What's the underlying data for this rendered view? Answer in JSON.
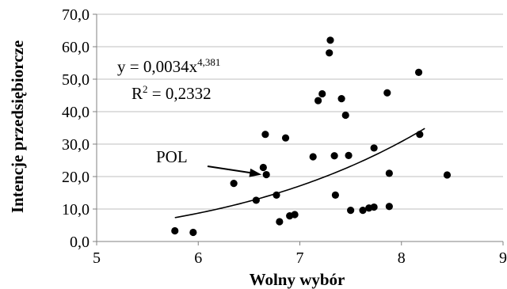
{
  "chart_data": {
    "type": "scatter",
    "xlabel": "Wolny wybór",
    "ylabel": "Intencje przedsiębiorcze",
    "xlim": [
      5,
      9
    ],
    "ylim": [
      0,
      70
    ],
    "x_ticks": [
      5,
      6,
      7,
      8,
      9
    ],
    "x_tick_labels": [
      "5",
      "6",
      "7",
      "8",
      "9"
    ],
    "y_ticks": [
      0,
      10,
      20,
      30,
      40,
      50,
      60,
      70
    ],
    "y_tick_labels": [
      "0,0",
      "10,0",
      "20,0",
      "30,0",
      "40,0",
      "50,0",
      "60,0",
      "70,0"
    ],
    "grid": "horizontal",
    "points": [
      {
        "x": 5.77,
        "y": 3.3
      },
      {
        "x": 5.95,
        "y": 2.8
      },
      {
        "x": 6.35,
        "y": 17.9
      },
      {
        "x": 6.57,
        "y": 12.7
      },
      {
        "x": 6.64,
        "y": 22.8
      },
      {
        "x": 6.66,
        "y": 33.0
      },
      {
        "x": 6.67,
        "y": 20.6
      },
      {
        "x": 6.77,
        "y": 14.3
      },
      {
        "x": 6.8,
        "y": 6.1
      },
      {
        "x": 6.86,
        "y": 31.9
      },
      {
        "x": 6.9,
        "y": 7.9
      },
      {
        "x": 6.95,
        "y": 8.3
      },
      {
        "x": 7.13,
        "y": 26.1
      },
      {
        "x": 7.18,
        "y": 43.4
      },
      {
        "x": 7.22,
        "y": 45.5
      },
      {
        "x": 7.29,
        "y": 58.1
      },
      {
        "x": 7.3,
        "y": 62.0
      },
      {
        "x": 7.34,
        "y": 26.4
      },
      {
        "x": 7.35,
        "y": 14.3
      },
      {
        "x": 7.41,
        "y": 44.0
      },
      {
        "x": 7.45,
        "y": 38.9
      },
      {
        "x": 7.48,
        "y": 26.5
      },
      {
        "x": 7.5,
        "y": 9.6
      },
      {
        "x": 7.62,
        "y": 9.6
      },
      {
        "x": 7.68,
        "y": 10.3
      },
      {
        "x": 7.73,
        "y": 10.6
      },
      {
        "x": 7.73,
        "y": 28.8
      },
      {
        "x": 7.86,
        "y": 45.8
      },
      {
        "x": 7.88,
        "y": 21.0
      },
      {
        "x": 7.88,
        "y": 10.8
      },
      {
        "x": 8.17,
        "y": 52.1
      },
      {
        "x": 8.18,
        "y": 33.0
      },
      {
        "x": 8.45,
        "y": 20.5
      }
    ],
    "trendline": {
      "type": "power",
      "coefficient": 0.0034,
      "exponent": 4.381,
      "x_range": [
        5.77,
        8.23
      ]
    },
    "annotations": {
      "equation_prefix": "y = 0,0034x",
      "equation_exponent": "4,381",
      "r2_prefix": "R",
      "r2_exponent": "2",
      "r2_suffix": " = 0,2332",
      "point_label": "POL",
      "point_label_target": {
        "x": 6.67,
        "y": 20.6
      }
    }
  }
}
